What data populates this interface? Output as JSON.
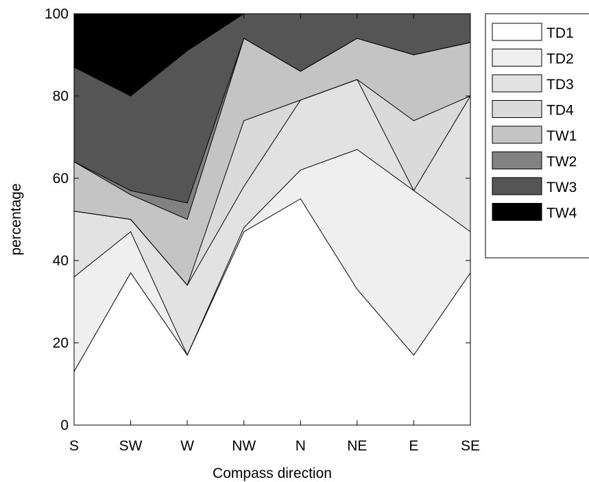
{
  "chart_data": {
    "type": "area",
    "stacked": true,
    "title": "",
    "xlabel": "Compass direction",
    "ylabel": "percentage",
    "categories": [
      "S",
      "SW",
      "W",
      "NW",
      "N",
      "NE",
      "E",
      "SE"
    ],
    "ylim": [
      0,
      100
    ],
    "yticks": [
      0,
      20,
      40,
      60,
      80,
      100
    ],
    "grid": false,
    "legend_position": "outside-right",
    "series": [
      {
        "name": "TD1",
        "color": "#ffffff",
        "values": [
          13,
          37,
          17,
          47,
          55,
          33,
          17,
          37
        ]
      },
      {
        "name": "TD2",
        "color": "#efefef",
        "values": [
          23,
          10,
          0,
          1,
          7,
          34,
          40,
          10
        ]
      },
      {
        "name": "TD3",
        "color": "#e2e2e2",
        "values": [
          16,
          3,
          17,
          10,
          17,
          17,
          0,
          33
        ]
      },
      {
        "name": "TD4",
        "color": "#dadada",
        "values": [
          0,
          0,
          0,
          16,
          0,
          0,
          17,
          0
        ]
      },
      {
        "name": "TW1",
        "color": "#c4c4c4",
        "values": [
          12,
          6,
          16,
          20,
          7,
          10,
          16,
          13
        ]
      },
      {
        "name": "TW2",
        "color": "#828282",
        "values": [
          0,
          1,
          4,
          0,
          0,
          0,
          0,
          0
        ]
      },
      {
        "name": "TW3",
        "color": "#555555",
        "values": [
          23,
          23,
          37,
          6,
          14,
          6,
          10,
          7
        ]
      },
      {
        "name": "TW4",
        "color": "#000000",
        "values": [
          13,
          20,
          9,
          0,
          0,
          0,
          0,
          0
        ]
      }
    ]
  }
}
